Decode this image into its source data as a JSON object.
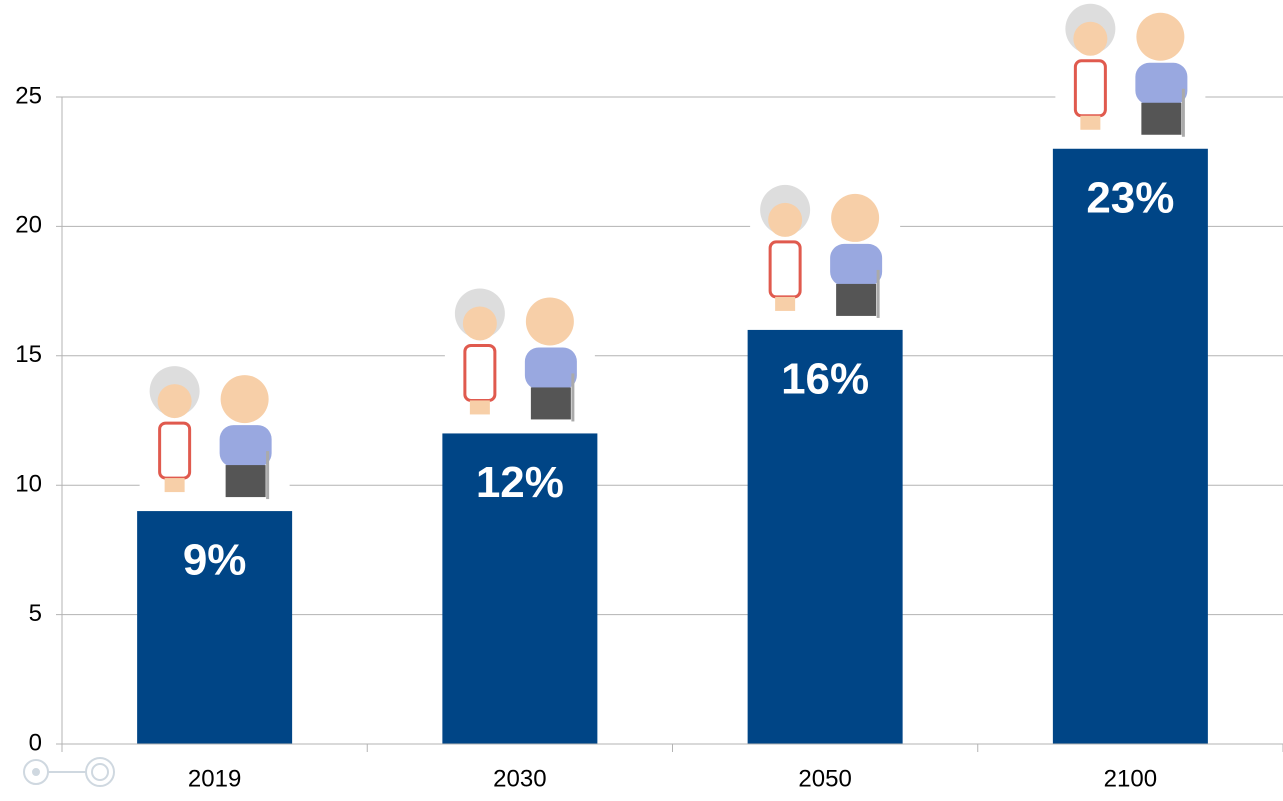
{
  "chart_data": {
    "type": "bar",
    "categories": [
      "2019",
      "2030",
      "2050",
      "2100"
    ],
    "values": [
      9,
      12,
      16,
      23
    ],
    "value_labels": [
      "9%",
      "12%",
      "16%",
      "23%"
    ],
    "color": "#004586",
    "ylim": [
      0,
      25
    ],
    "yticks": [
      0,
      5,
      10,
      15,
      20,
      25
    ],
    "grid": true
  }
}
